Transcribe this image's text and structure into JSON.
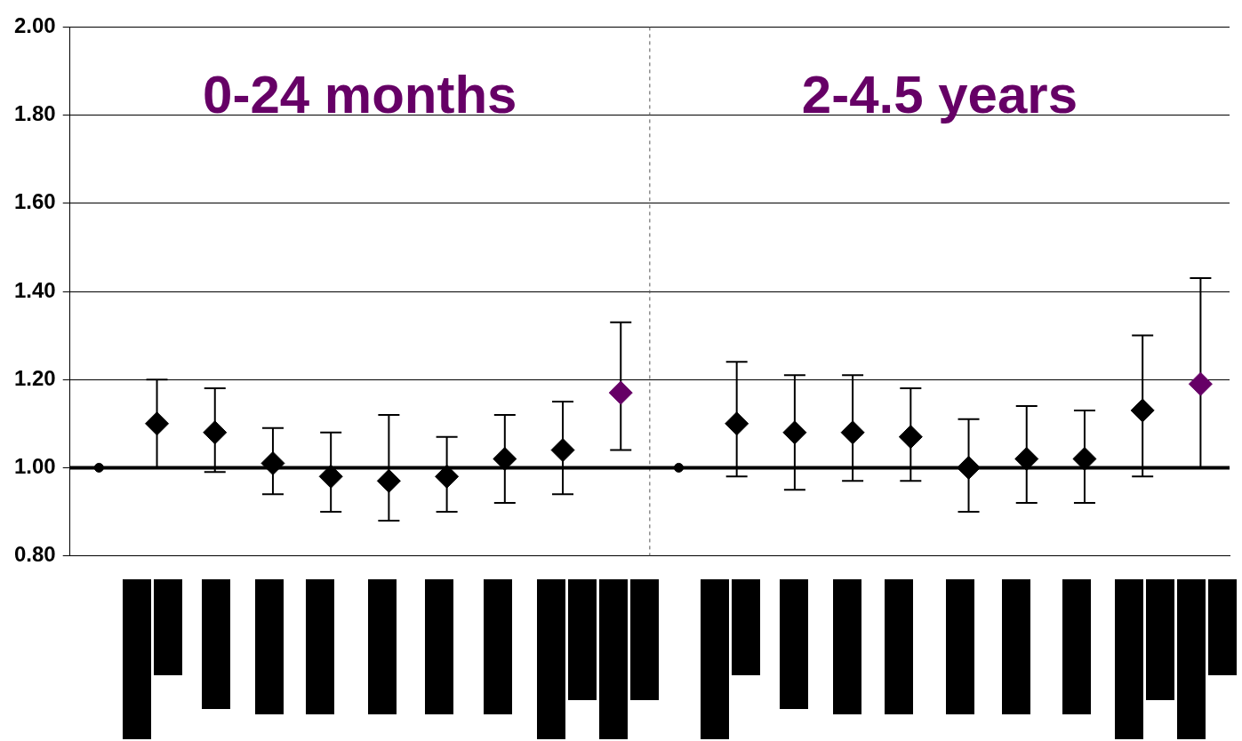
{
  "chart_data": {
    "type": "scatter",
    "categories": [
      null,
      null,
      null,
      null,
      null,
      null,
      null,
      null,
      null,
      null,
      null,
      null,
      null,
      null,
      null,
      null,
      null,
      null,
      null,
      null
    ],
    "series": [
      {
        "color": "#000000",
        "marker": "circle",
        "values": [
          1.0,
          null,
          null,
          null,
          null,
          null,
          null,
          null,
          null,
          null,
          1.0,
          null,
          null,
          null,
          null,
          null,
          null,
          null,
          null,
          null
        ]
      },
      {
        "color": "#000000",
        "marker": "diamond",
        "values": [
          null,
          1.1,
          1.08,
          1.01,
          0.98,
          0.97,
          0.98,
          1.02,
          1.04,
          null,
          null,
          1.1,
          1.08,
          1.08,
          1.07,
          1.0,
          1.02,
          1.02,
          1.13,
          null
        ],
        "errors": [
          null,
          [
            1.0,
            1.2
          ],
          [
            0.99,
            1.18
          ],
          [
            0.94,
            1.09
          ],
          [
            0.9,
            1.08
          ],
          [
            0.88,
            1.12
          ],
          [
            0.9,
            1.07
          ],
          [
            0.92,
            1.12
          ],
          [
            0.94,
            1.15
          ],
          null,
          null,
          [
            0.98,
            1.24
          ],
          [
            0.95,
            1.21
          ],
          [
            0.97,
            1.21
          ],
          [
            0.97,
            1.18
          ],
          [
            0.9,
            1.11
          ],
          [
            0.92,
            1.14
          ],
          [
            0.92,
            1.13
          ],
          [
            0.98,
            1.3
          ],
          null
        ]
      },
      {
        "color": "#660066",
        "marker": "diamond",
        "values": [
          null,
          null,
          null,
          null,
          null,
          null,
          null,
          null,
          null,
          1.17,
          null,
          null,
          null,
          null,
          null,
          null,
          null,
          null,
          null,
          1.19
        ],
        "errors": [
          null,
          null,
          null,
          null,
          null,
          null,
          null,
          null,
          null,
          [
            1.04,
            1.33
          ],
          null,
          null,
          null,
          null,
          null,
          null,
          null,
          null,
          null,
          [
            1.0,
            1.43
          ]
        ]
      }
    ],
    "ylim": [
      0.8,
      2.0
    ],
    "yticks": [
      {
        "value": 0.8,
        "label": "0.80"
      },
      {
        "value": 1.0,
        "label": "1.00"
      },
      {
        "value": 1.2,
        "label": "1.20"
      },
      {
        "value": 1.4,
        "label": "1.40"
      },
      {
        "value": 1.6,
        "label": "1.60"
      },
      {
        "value": 1.8,
        "label": "1.80"
      },
      {
        "value": 2.0,
        "label": "2.00"
      }
    ],
    "tick_labels": "y",
    "grid": "y",
    "legend": false,
    "ref_lines": [
      {
        "axis": "y",
        "value": 1.0
      }
    ],
    "annotations": [
      "0-24 months",
      "2-4.5 years"
    ]
  }
}
